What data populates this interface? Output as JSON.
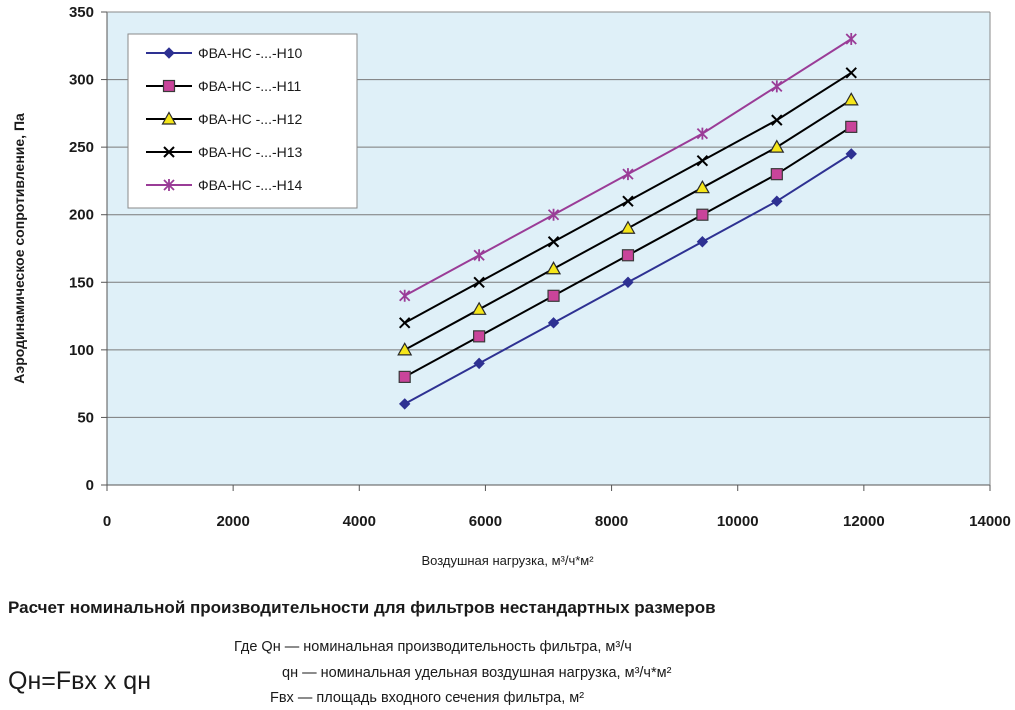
{
  "chart_data": {
    "type": "line",
    "x": [
      4720,
      5900,
      7080,
      8260,
      9440,
      10620,
      11800
    ],
    "series": [
      {
        "name": "ФВА-НС -...-Н10",
        "marker": "diamond",
        "color": "#2e3192",
        "values": [
          60,
          90,
          120,
          150,
          180,
          210,
          245
        ]
      },
      {
        "name": "ФВА-НС -...-Н11",
        "marker": "square",
        "color": "#000000",
        "marker_fill": "#c9449a",
        "values": [
          80,
          110,
          140,
          170,
          200,
          230,
          265
        ]
      },
      {
        "name": "ФВА-НС -...-Н12",
        "marker": "triangle",
        "color": "#000000",
        "marker_fill": "#f5e61a",
        "values": [
          100,
          130,
          160,
          190,
          220,
          250,
          285
        ]
      },
      {
        "name": "ФВА-НС -...-Н13",
        "marker": "x",
        "color": "#000000",
        "values": [
          120,
          150,
          180,
          210,
          240,
          270,
          305
        ]
      },
      {
        "name": "ФВА-НС -...-Н14",
        "marker": "star",
        "color": "#9a3c97",
        "values": [
          140,
          170,
          200,
          230,
          260,
          295,
          330
        ]
      }
    ],
    "xlim": [
      0,
      14000
    ],
    "ylim": [
      0,
      350
    ],
    "xticks": [
      "0",
      "2000",
      "4000",
      "6000",
      "8000",
      "10000",
      "12000",
      "14000"
    ],
    "yticks": [
      "0",
      "50",
      "100",
      "150",
      "200",
      "250",
      "300",
      "350"
    ],
    "xlabel": "Воздушная нагрузка, м³/ч*м²",
    "ylabel": "Аэродинамическое сопротивление, Па",
    "grid": "horizontal",
    "legend": "top-left",
    "plot_background": "#dff0f8"
  },
  "section": {
    "title": "Расчет номинальной производительности для фильтров нестандартных размеров",
    "formula": "Qн=Fвх x qн",
    "definitions": [
      "Где Qн — номинальная производительность фильтра, м³/ч",
      "qн — номинальная удельная воздушная нагрузка, м³/ч*м²",
      "Fвх — площадь входного сечения фильтра, м²"
    ]
  }
}
